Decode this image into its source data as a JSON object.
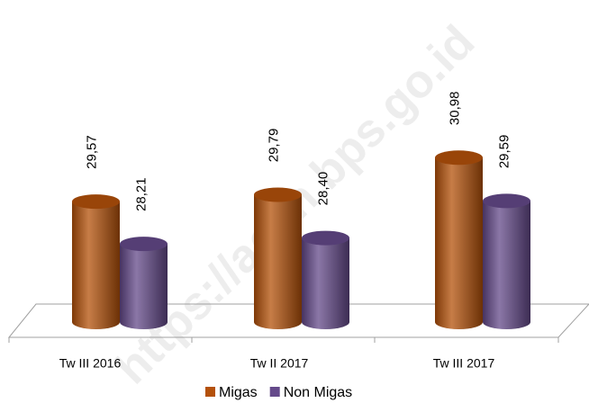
{
  "chart_data": {
    "type": "bar",
    "categories": [
      "Tw  III 2016",
      "Tw II 2017",
      "Tw  III 2017"
    ],
    "series": [
      {
        "name": "Migas",
        "color": "#b4510a",
        "values": [
          29.57,
          29.79,
          30.98
        ],
        "value_labels": [
          "29,57",
          "29,79",
          "30,98"
        ]
      },
      {
        "name": "Non Migas",
        "color": "#64498a",
        "values": [
          28.21,
          28.4,
          29.59
        ],
        "value_labels": [
          "28,21",
          "28,40",
          "29,59"
        ]
      }
    ],
    "ylim": [
      25.7,
      32
    ],
    "legend": "bottom",
    "watermark": "https://aceh.bps.go.id"
  }
}
